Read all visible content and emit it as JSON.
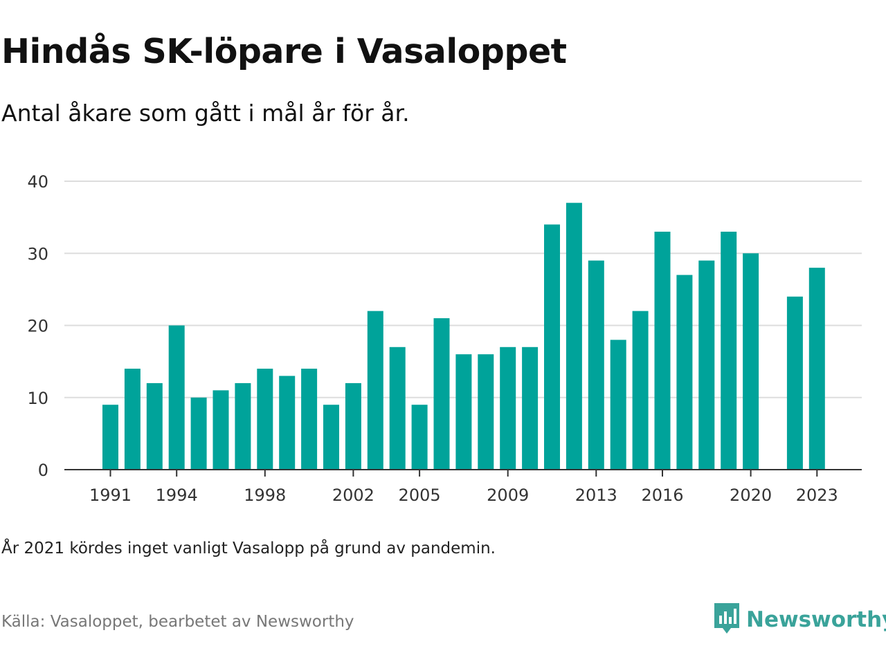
{
  "title": "Hindås SK-löpare i Vasaloppet",
  "subtitle": "Antal åkare som gått i mål år för år.",
  "footnote": "År 2021 kördes inget vanligt Vasalopp på grund av pandemin.",
  "source": "Källa: Vasaloppet, bearbetet av Newsworthy",
  "brand": {
    "name": "Newsworthy",
    "icon": "newsworthy-logo-icon"
  },
  "colors": {
    "bar": "#00a39a",
    "grid": "#dddddd",
    "axis": "#333333",
    "brand": "#3aa39a"
  },
  "chart_data": {
    "type": "bar",
    "x": [
      1991,
      1992,
      1993,
      1994,
      1995,
      1996,
      1997,
      1998,
      1999,
      2000,
      2001,
      2002,
      2003,
      2004,
      2005,
      2006,
      2007,
      2008,
      2009,
      2010,
      2011,
      2012,
      2013,
      2014,
      2015,
      2016,
      2017,
      2018,
      2019,
      2020,
      2021,
      2022,
      2023
    ],
    "values": [
      9,
      14,
      12,
      20,
      10,
      11,
      12,
      14,
      13,
      14,
      9,
      12,
      22,
      17,
      9,
      21,
      16,
      16,
      17,
      17,
      34,
      37,
      29,
      18,
      22,
      33,
      27,
      29,
      33,
      30,
      null,
      24,
      28
    ],
    "x_tick_labels": [
      "1991",
      "1994",
      "1998",
      "2002",
      "2005",
      "2009",
      "2013",
      "2016",
      "2020",
      "2023"
    ],
    "y_ticks": [
      0,
      10,
      20,
      30,
      40
    ],
    "ylim": [
      0,
      40
    ],
    "grid": true
  }
}
